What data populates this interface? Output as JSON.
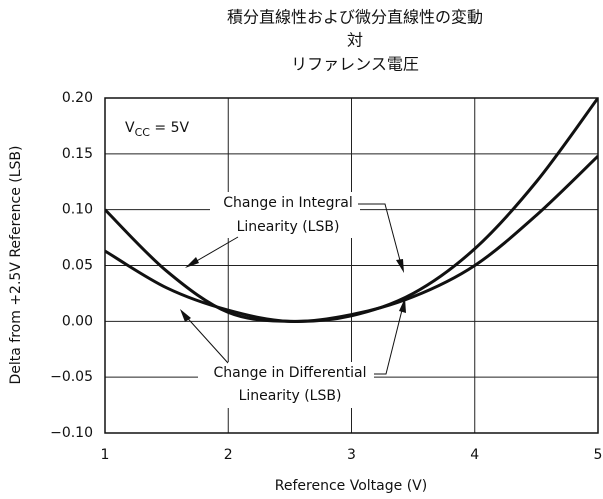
{
  "chart_data": {
    "type": "line",
    "title": [
      "積分直線性および微分直線性の変動",
      "対",
      "リファレンス電圧"
    ],
    "x_label": "Reference Voltage (V)",
    "y_label": "Delta from +2.5V Reference (LSB)",
    "condition": {
      "main": "V",
      "sub": "CC",
      "rest": " = 5V"
    },
    "annotations": [
      [
        "Change in Integral",
        "Linearity (LSB)"
      ],
      [
        "Change in Differential",
        "Linearity (LSB)"
      ]
    ],
    "x": [
      1,
      1.5,
      2,
      2.5,
      3,
      3.5,
      4,
      4.5,
      5
    ],
    "series": [
      {
        "color": "#111111",
        "values": [
          0.1,
          0.045,
          0.008,
          0.0,
          0.005,
          0.025,
          0.065,
          0.125,
          0.2
        ]
      },
      {
        "color": "#111111",
        "values": [
          0.063,
          0.03,
          0.01,
          0.0,
          0.006,
          0.022,
          0.05,
          0.095,
          0.148
        ]
      }
    ],
    "xlim": [
      1,
      5
    ],
    "xticks": [
      1,
      2,
      3,
      4,
      5
    ],
    "ylim": [
      -0.1,
      0.2
    ],
    "yticks": [
      {
        "value": -0.1,
        "label": "−0.10"
      },
      {
        "value": -0.05,
        "label": "−0.05"
      },
      {
        "value": 0,
        "label": "0.00"
      },
      {
        "value": 0.05,
        "label": "0.05"
      },
      {
        "value": 0.1,
        "label": "0.10"
      },
      {
        "value": 0.15,
        "label": "0.15"
      },
      {
        "value": 0.2,
        "label": "0.20"
      }
    ],
    "grid": true
  }
}
